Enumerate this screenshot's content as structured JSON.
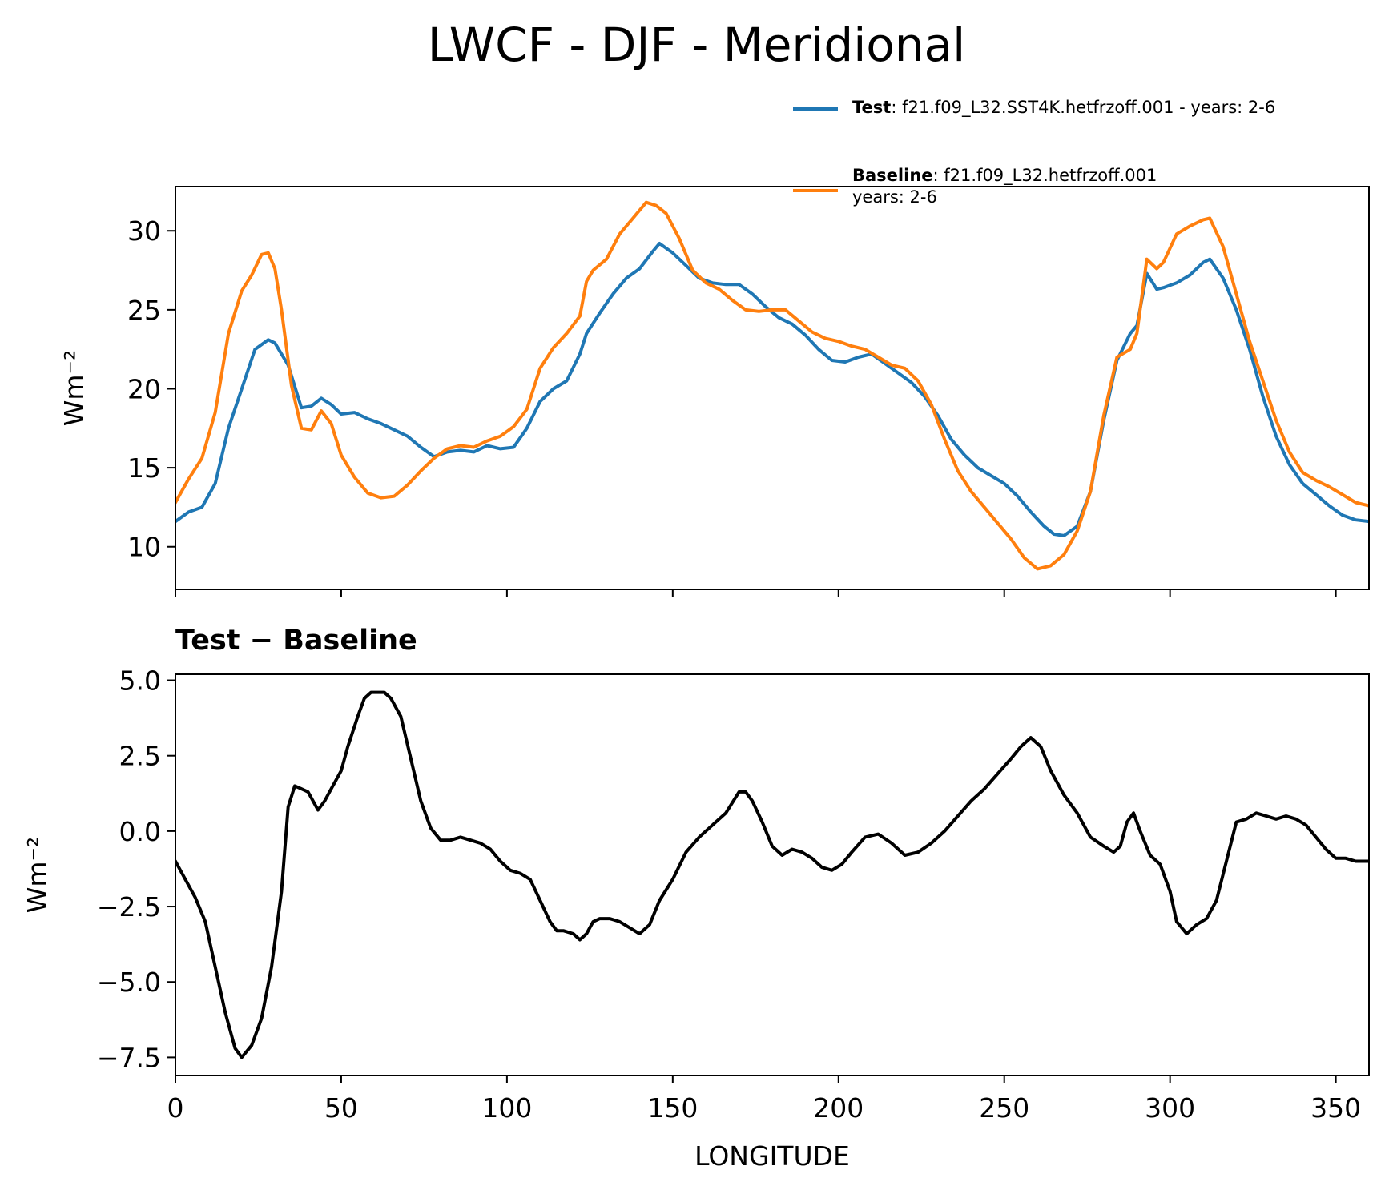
{
  "title": "LWCF - DJF - Meridional",
  "legend": {
    "test_label": "Test",
    "test_text": ": f21.f09_L32.SST4K.hetfrzoff.001 - years: 2-6",
    "baseline_label": "Baseline",
    "baseline_text": ": f21.f09_L32.hetfrzoff.001",
    "baseline_text2": "years: 2-6"
  },
  "subtitle": "Test − Baseline",
  "chart_data": [
    {
      "type": "line",
      "title": "LWCF - DJF - Meridional",
      "xlabel": "",
      "ylabel": "Wm⁻²",
      "xlim": [
        0,
        360
      ],
      "ylim": [
        7.3,
        32.8
      ],
      "yticks": [
        10,
        15,
        20,
        25,
        30
      ],
      "ytick_labels": [
        "10",
        "15",
        "20",
        "25",
        "30"
      ],
      "xticks": [
        0,
        50,
        100,
        150,
        200,
        250,
        300,
        350
      ],
      "legend_location": "above-right",
      "series": [
        {
          "name": "Test",
          "color": "#1f77b4",
          "x": [
            0,
            4,
            8,
            12,
            16,
            20,
            24,
            28,
            30,
            34,
            38,
            41,
            44,
            47,
            50,
            54,
            58,
            62,
            66,
            70,
            74,
            78,
            82,
            86,
            90,
            94,
            98,
            102,
            106,
            110,
            114,
            118,
            122,
            124,
            128,
            132,
            136,
            140,
            144,
            146,
            150,
            154,
            158,
            162,
            166,
            170,
            174,
            178,
            182,
            186,
            190,
            194,
            198,
            202,
            206,
            210,
            214,
            218,
            222,
            226,
            230,
            234,
            238,
            242,
            246,
            250,
            254,
            258,
            262,
            265,
            268,
            272,
            276,
            280,
            284,
            288,
            290,
            293,
            296,
            298,
            302,
            306,
            310,
            312,
            316,
            320,
            324,
            328,
            332,
            336,
            340,
            344,
            348,
            352,
            356,
            360
          ],
          "values": [
            11.6,
            12.2,
            12.5,
            14.0,
            17.5,
            20.0,
            22.5,
            23.1,
            22.9,
            21.5,
            18.8,
            18.9,
            19.4,
            19.0,
            18.4,
            18.5,
            18.1,
            17.8,
            17.4,
            17.0,
            16.3,
            15.7,
            16.0,
            16.1,
            16.0,
            16.4,
            16.2,
            16.3,
            17.5,
            19.2,
            20.0,
            20.5,
            22.2,
            23.5,
            24.8,
            26.0,
            27.0,
            27.6,
            28.7,
            29.2,
            28.6,
            27.8,
            27.0,
            26.7,
            26.6,
            26.6,
            26.0,
            25.2,
            24.5,
            24.1,
            23.4,
            22.5,
            21.8,
            21.7,
            22.0,
            22.2,
            21.6,
            21.0,
            20.4,
            19.5,
            18.3,
            16.8,
            15.8,
            15.0,
            14.5,
            14.0,
            13.2,
            12.2,
            11.3,
            10.8,
            10.7,
            11.3,
            13.5,
            18.0,
            21.8,
            23.5,
            24.0,
            27.3,
            26.3,
            26.4,
            26.7,
            27.2,
            28.0,
            28.2,
            27.0,
            25.0,
            22.5,
            19.5,
            17.0,
            15.2,
            14.0,
            13.3,
            12.6,
            12.0,
            11.7,
            11.6
          ]
        },
        {
          "name": "Baseline",
          "color": "#ff7f0e",
          "x": [
            0,
            4,
            8,
            12,
            16,
            20,
            23,
            26,
            28,
            30,
            32,
            35,
            38,
            41,
            44,
            47,
            50,
            54,
            58,
            62,
            66,
            70,
            74,
            78,
            82,
            86,
            90,
            94,
            98,
            102,
            106,
            110,
            114,
            118,
            122,
            124,
            126,
            130,
            134,
            138,
            142,
            145,
            148,
            152,
            156,
            160,
            164,
            168,
            172,
            176,
            180,
            184,
            188,
            192,
            196,
            200,
            204,
            208,
            212,
            216,
            220,
            224,
            228,
            232,
            236,
            240,
            244,
            248,
            252,
            256,
            260,
            264,
            268,
            272,
            276,
            280,
            284,
            288,
            290,
            293,
            296,
            298,
            302,
            306,
            310,
            312,
            316,
            320,
            324,
            328,
            332,
            336,
            340,
            344,
            348,
            352,
            356,
            360
          ],
          "values": [
            12.8,
            14.3,
            15.6,
            18.5,
            23.5,
            26.2,
            27.2,
            28.5,
            28.6,
            27.6,
            25.0,
            20.2,
            17.5,
            17.4,
            18.6,
            17.8,
            15.8,
            14.4,
            13.4,
            13.1,
            13.2,
            13.9,
            14.8,
            15.6,
            16.2,
            16.4,
            16.3,
            16.7,
            17.0,
            17.6,
            18.7,
            21.3,
            22.6,
            23.5,
            24.6,
            26.8,
            27.5,
            28.2,
            29.8,
            30.8,
            31.8,
            31.6,
            31.1,
            29.5,
            27.5,
            26.7,
            26.3,
            25.6,
            25.0,
            24.9,
            25.0,
            25.0,
            24.3,
            23.6,
            23.2,
            23.0,
            22.7,
            22.5,
            22.0,
            21.5,
            21.3,
            20.5,
            19.0,
            16.8,
            14.8,
            13.5,
            12.5,
            11.5,
            10.5,
            9.3,
            8.6,
            8.8,
            9.5,
            11.0,
            13.5,
            18.3,
            22.0,
            22.5,
            23.5,
            28.2,
            27.6,
            28.0,
            29.8,
            30.3,
            30.7,
            30.8,
            29.0,
            26.0,
            23.0,
            20.5,
            18.0,
            16.0,
            14.7,
            14.2,
            13.8,
            13.3,
            12.8,
            12.6
          ]
        }
      ]
    },
    {
      "type": "line",
      "title": "Test − Baseline",
      "xlabel": "LONGITUDE",
      "ylabel": "Wm⁻²",
      "xlim": [
        0,
        360
      ],
      "ylim": [
        -8.1,
        5.2
      ],
      "yticks": [
        5.0,
        2.5,
        0.0,
        -2.5,
        -5.0,
        -7.5
      ],
      "ytick_labels": [
        "5.0",
        "2.5",
        "0.0",
        "−2.5",
        "−5.0",
        "−7.5"
      ],
      "xticks": [
        0,
        50,
        100,
        150,
        200,
        250,
        300,
        350
      ],
      "xtick_labels": [
        "0",
        "50",
        "100",
        "150",
        "200",
        "250",
        "300",
        "350"
      ],
      "series": [
        {
          "name": "Test - Baseline",
          "color": "#000000",
          "x": [
            0,
            3,
            6,
            9,
            12,
            15,
            18,
            20,
            23,
            26,
            29,
            32,
            34,
            36,
            38,
            40,
            43,
            45,
            47,
            50,
            52,
            55,
            57,
            59,
            61,
            63,
            65,
            68,
            71,
            74,
            77,
            80,
            83,
            86,
            89,
            92,
            95,
            98,
            101,
            104,
            107,
            110,
            113,
            115,
            117,
            120,
            122,
            124,
            126,
            128,
            131,
            134,
            137,
            140,
            143,
            146,
            150,
            154,
            158,
            162,
            166,
            170,
            172,
            174,
            177,
            180,
            183,
            186,
            189,
            192,
            195,
            198,
            201,
            204,
            208,
            212,
            216,
            220,
            224,
            228,
            232,
            236,
            240,
            244,
            248,
            252,
            255,
            258,
            261,
            264,
            268,
            272,
            276,
            280,
            283,
            285,
            287,
            289,
            291,
            294,
            297,
            300,
            302,
            305,
            308,
            311,
            314,
            317,
            320,
            323,
            326,
            329,
            332,
            335,
            338,
            341,
            344,
            347,
            350,
            353,
            356,
            360
          ],
          "values": [
            -1.0,
            -1.6,
            -2.2,
            -3.0,
            -4.5,
            -6.0,
            -7.2,
            -7.5,
            -7.1,
            -6.2,
            -4.5,
            -2.0,
            0.8,
            1.5,
            1.4,
            1.3,
            0.7,
            1.0,
            1.4,
            2.0,
            2.8,
            3.8,
            4.4,
            4.6,
            4.6,
            4.6,
            4.4,
            3.8,
            2.4,
            1.0,
            0.1,
            -0.3,
            -0.3,
            -0.2,
            -0.3,
            -0.4,
            -0.6,
            -1.0,
            -1.3,
            -1.4,
            -1.6,
            -2.3,
            -3.0,
            -3.3,
            -3.3,
            -3.4,
            -3.6,
            -3.4,
            -3.0,
            -2.9,
            -2.9,
            -3.0,
            -3.2,
            -3.4,
            -3.1,
            -2.3,
            -1.6,
            -0.7,
            -0.2,
            0.2,
            0.6,
            1.3,
            1.3,
            1.0,
            0.3,
            -0.5,
            -0.8,
            -0.6,
            -0.7,
            -0.9,
            -1.2,
            -1.3,
            -1.1,
            -0.7,
            -0.2,
            -0.1,
            -0.4,
            -0.8,
            -0.7,
            -0.4,
            0.0,
            0.5,
            1.0,
            1.4,
            1.9,
            2.4,
            2.8,
            3.1,
            2.8,
            2.0,
            1.2,
            0.6,
            -0.2,
            -0.5,
            -0.7,
            -0.5,
            0.3,
            0.6,
            0.0,
            -0.8,
            -1.1,
            -2.0,
            -3.0,
            -3.4,
            -3.1,
            -2.9,
            -2.3,
            -1.0,
            0.3,
            0.4,
            0.6,
            0.5,
            0.4,
            0.5,
            0.4,
            0.2,
            -0.2,
            -0.6,
            -0.9,
            -0.9,
            -1.0,
            -1.0
          ]
        }
      ]
    }
  ]
}
